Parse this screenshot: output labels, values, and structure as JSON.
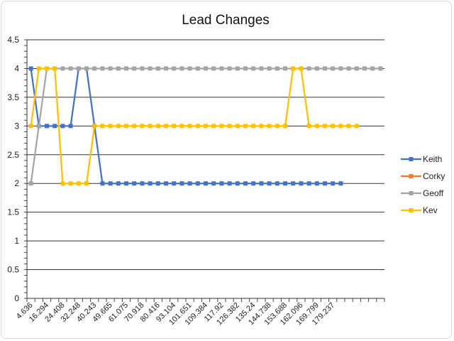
{
  "chart_data": {
    "type": "line",
    "title": "Lead Changes",
    "ylim": [
      0,
      4.5
    ],
    "y_ticks": [
      "0",
      "0.5",
      "1",
      "1.5",
      "2",
      "2.5",
      "3",
      "3.5",
      "4",
      "4.5"
    ],
    "x_tick_labels": [
      "4.636",
      "16.294",
      "24.408",
      "32.248",
      "40.243",
      "49.665",
      "61.075",
      "70.918",
      "80.416",
      "93.104",
      "101.651",
      "109.384",
      "117.92",
      "126.382",
      "135.24",
      "144.738",
      "153.688",
      "162.096",
      "169.799",
      "179.237"
    ],
    "category_count": 45,
    "grid": true,
    "legend_position": "right",
    "series": [
      {
        "name": "Keith",
        "color": "#4472C4",
        "values": [
          4,
          3,
          3,
          3,
          3,
          3,
          4,
          4,
          3,
          2,
          2,
          2,
          2,
          2,
          2,
          2,
          2,
          2,
          2,
          2,
          2,
          2,
          2,
          2,
          2,
          2,
          2,
          2,
          2,
          2,
          2,
          2,
          2,
          2,
          2,
          2,
          2,
          2,
          2,
          2
        ]
      },
      {
        "name": "Corky",
        "color": "#ED7D31",
        "values": []
      },
      {
        "name": "Geoff",
        "color": "#A5A5A5",
        "values": [
          2,
          3,
          4,
          4,
          4,
          4,
          4,
          4,
          4,
          4,
          4,
          4,
          4,
          4,
          4,
          4,
          4,
          4,
          4,
          4,
          4,
          4,
          4,
          4,
          4,
          4,
          4,
          4,
          4,
          4,
          4,
          4,
          4,
          4,
          4,
          4,
          4,
          4,
          4,
          4,
          4,
          4,
          4,
          4,
          4
        ]
      },
      {
        "name": "Kev",
        "color": "#FFC000",
        "values": [
          3,
          4,
          4,
          4,
          2,
          2,
          2,
          2,
          3,
          3,
          3,
          3,
          3,
          3,
          3,
          3,
          3,
          3,
          3,
          3,
          3,
          3,
          3,
          3,
          3,
          3,
          3,
          3,
          3,
          3,
          3,
          3,
          3,
          4,
          4,
          3,
          3,
          3,
          3,
          3,
          3,
          3
        ]
      }
    ]
  }
}
